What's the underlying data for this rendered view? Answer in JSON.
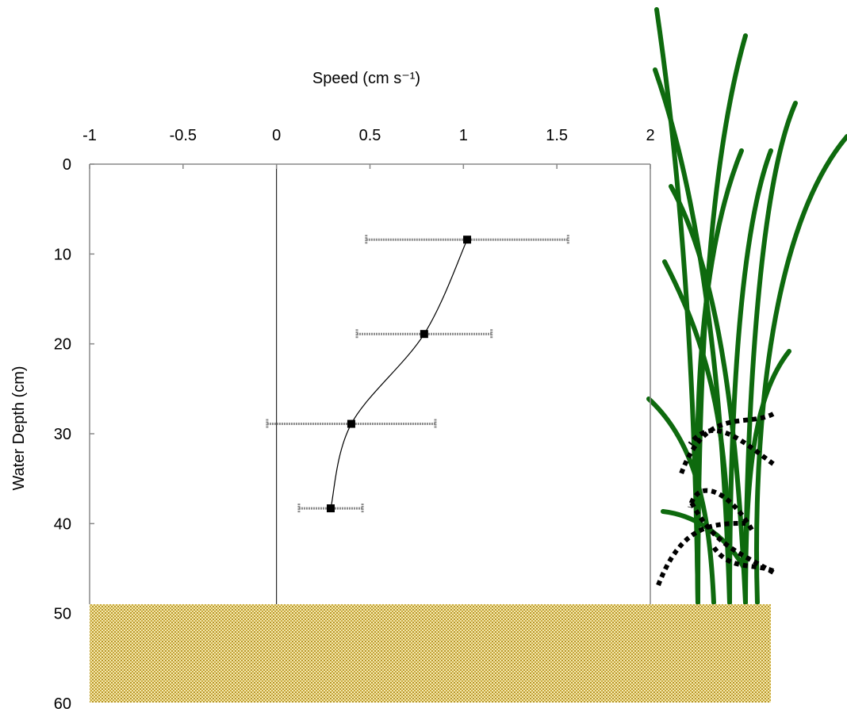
{
  "chart_data": {
    "type": "scatter",
    "x_label": "Speed (cm s⁻¹)",
    "y_label": "Water Depth (cm)",
    "xlim": [
      -1,
      2
    ],
    "xticks": [
      -1,
      -0.5,
      0,
      0.5,
      1,
      1.5,
      2
    ],
    "ylim": [
      0,
      60
    ],
    "yticks": [
      0,
      10,
      20,
      30,
      40,
      50,
      60
    ],
    "y_reversed": true,
    "x_axis_position": "top",
    "series": [
      {
        "color": "#000000",
        "error_color": "#888888",
        "x": [
          1.02,
          0.79,
          0.4,
          0.29
        ],
        "xerr": [
          0.54,
          0.36,
          0.45,
          0.17
        ],
        "y": [
          8.4,
          18.9,
          28.9,
          38.3
        ]
      }
    ]
  }
}
